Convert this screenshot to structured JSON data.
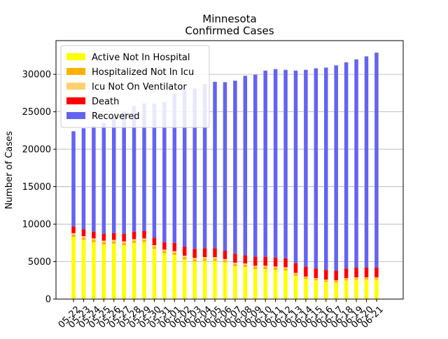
{
  "chart_data": {
    "type": "bar",
    "stacked": true,
    "title": "Minnesota",
    "subtitle": "Confirmed Cases",
    "xlabel": "",
    "ylabel": "Number of Cases",
    "ylim": [
      0,
      34500
    ],
    "yticks": [
      0,
      5000,
      10000,
      15000,
      20000,
      25000,
      30000
    ],
    "grid": "horizontal",
    "legend_position": "top-left",
    "categories": [
      "05-22",
      "05-23",
      "05-24",
      "05-25",
      "05-26",
      "05-27",
      "05-28",
      "05-29",
      "05-30",
      "05-31",
      "06-01",
      "06-02",
      "06-03",
      "06-04",
      "06-05",
      "06-06",
      "06-07",
      "06-08",
      "06-09",
      "06-10",
      "06-11",
      "06-12",
      "06-13",
      "06-14",
      "06-15",
      "06-16",
      "06-17",
      "06-18",
      "06-19",
      "06-20",
      "06-21"
    ],
    "series": [
      {
        "name": "Active Not In Hospital",
        "color": "#ffff00",
        "values": [
          8300,
          7900,
          7600,
          7300,
          7400,
          7200,
          7500,
          7600,
          6700,
          6100,
          5900,
          5300,
          5000,
          5100,
          5100,
          4900,
          4400,
          4300,
          4000,
          4000,
          3900,
          3800,
          3100,
          2700,
          2500,
          2300,
          2200,
          2500,
          2600,
          2600,
          2600
        ]
      },
      {
        "name": "Hospitalized Not In Icu",
        "color": "#ffb000",
        "values": [
          300,
          300,
          300,
          300,
          300,
          300,
          300,
          300,
          300,
          300,
          300,
          300,
          300,
          300,
          300,
          300,
          300,
          300,
          300,
          300,
          300,
          300,
          250,
          200,
          200,
          200,
          200,
          200,
          200,
          200,
          200
        ]
      },
      {
        "name": "Icu Not On Ventilator",
        "color": "#ffd070",
        "values": [
          200,
          200,
          200,
          200,
          200,
          200,
          200,
          200,
          200,
          200,
          200,
          200,
          200,
          200,
          200,
          150,
          150,
          150,
          150,
          150,
          150,
          150,
          150,
          100,
          100,
          100,
          100,
          100,
          100,
          100,
          100
        ]
      },
      {
        "name": "Death",
        "color": "#ff0000",
        "values": [
          900,
          900,
          900,
          900,
          900,
          1000,
          1000,
          1000,
          1000,
          1000,
          1100,
          1200,
          1200,
          1200,
          1200,
          1100,
          1200,
          1100,
          1200,
          1200,
          1200,
          1200,
          1300,
          1300,
          1300,
          1300,
          1300,
          1300,
          1300,
          1300,
          1300
        ]
      },
      {
        "name": "Recovered",
        "color": "#6464f0",
        "values": [
          12700,
          13500,
          14100,
          14800,
          15600,
          16300,
          16800,
          17000,
          17900,
          18700,
          19900,
          20900,
          21400,
          21900,
          22200,
          22500,
          23100,
          23950,
          24300,
          24850,
          25150,
          25150,
          25700,
          26300,
          26700,
          27000,
          27400,
          27500,
          27800,
          28200,
          28700
        ]
      }
    ]
  }
}
